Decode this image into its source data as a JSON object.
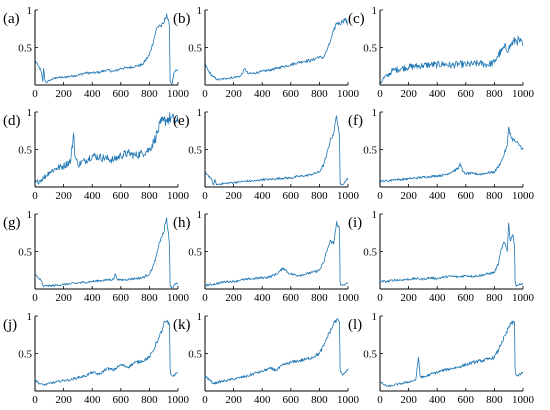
{
  "figure": {
    "line_color": "#1f77b4",
    "axis_color": "#000000"
  },
  "chart_data": [
    {
      "type": "line",
      "label": "(a)",
      "x_ticks": [
        0,
        200,
        400,
        600,
        800,
        1000
      ],
      "y_ticks": [
        0.5,
        1
      ],
      "xlim": [
        0,
        1000
      ],
      "ylim": [
        0,
        1
      ],
      "grid": false,
      "series": [
        {
          "x": [
            0,
            20,
            40,
            55,
            60,
            70,
            80,
            100,
            150,
            200,
            250,
            300,
            350,
            400,
            450,
            500,
            550,
            600,
            650,
            700,
            750,
            800,
            830,
            850,
            870,
            880,
            900,
            920,
            940,
            945,
            950,
            960,
            970,
            980,
            1000
          ],
          "y": [
            0.33,
            0.26,
            0.2,
            0.05,
            0.22,
            0.06,
            0.03,
            0.06,
            0.1,
            0.1,
            0.12,
            0.13,
            0.16,
            0.16,
            0.17,
            0.2,
            0.18,
            0.22,
            0.23,
            0.25,
            0.27,
            0.4,
            0.6,
            0.75,
            0.8,
            0.78,
            0.82,
            0.95,
            0.78,
            0.05,
            0.03,
            0.02,
            0.15,
            0.18,
            0.2
          ]
        }
      ]
    },
    {
      "type": "line",
      "label": "(b)",
      "x_ticks": [
        0,
        200,
        400,
        600,
        800,
        1000
      ],
      "y_ticks": [
        0.5,
        1
      ],
      "xlim": [
        0,
        1000
      ],
      "ylim": [
        0,
        1
      ],
      "grid": false,
      "series": [
        {
          "x": [
            0,
            20,
            50,
            80,
            100,
            150,
            200,
            250,
            280,
            300,
            350,
            400,
            450,
            500,
            550,
            600,
            650,
            700,
            750,
            800,
            820,
            850,
            880,
            900,
            920,
            940,
            960,
            980,
            1000
          ],
          "y": [
            0.28,
            0.2,
            0.12,
            0.08,
            0.07,
            0.09,
            0.1,
            0.12,
            0.22,
            0.15,
            0.16,
            0.18,
            0.2,
            0.22,
            0.25,
            0.27,
            0.3,
            0.32,
            0.33,
            0.38,
            0.35,
            0.45,
            0.6,
            0.72,
            0.83,
            0.82,
            0.85,
            0.88,
            0.8
          ]
        }
      ]
    },
    {
      "type": "line",
      "label": "(c)",
      "x_ticks": [
        0,
        200,
        400,
        600,
        800,
        1000
      ],
      "y_ticks": [
        0.5,
        1
      ],
      "xlim": [
        0,
        1000
      ],
      "ylim": [
        0,
        1
      ],
      "grid": false,
      "series": [
        {
          "x": [
            0,
            20,
            50,
            80,
            100,
            150,
            200,
            250,
            300,
            350,
            400,
            450,
            500,
            550,
            600,
            650,
            700,
            750,
            800,
            820,
            850,
            870,
            900,
            920,
            950,
            980,
            1000
          ],
          "y": [
            0.02,
            0.08,
            0.12,
            0.18,
            0.2,
            0.22,
            0.24,
            0.25,
            0.26,
            0.27,
            0.27,
            0.28,
            0.26,
            0.28,
            0.27,
            0.28,
            0.29,
            0.27,
            0.3,
            0.38,
            0.45,
            0.5,
            0.48,
            0.55,
            0.6,
            0.58,
            0.52
          ]
        }
      ]
    },
    {
      "type": "line",
      "label": "(d)",
      "x_ticks": [
        0,
        200,
        400,
        600,
        800,
        1000
      ],
      "y_ticks": [
        0.5,
        1
      ],
      "xlim": [
        0,
        1000
      ],
      "ylim": [
        0,
        1
      ],
      "grid": false,
      "series": [
        {
          "x": [
            0,
            30,
            60,
            100,
            150,
            200,
            250,
            270,
            280,
            300,
            350,
            400,
            450,
            500,
            550,
            600,
            650,
            700,
            750,
            800,
            830,
            860,
            880,
            900,
            920,
            950,
            980,
            1000
          ],
          "y": [
            0.05,
            0.08,
            0.12,
            0.2,
            0.25,
            0.28,
            0.35,
            0.72,
            0.4,
            0.3,
            0.35,
            0.42,
            0.4,
            0.38,
            0.36,
            0.42,
            0.45,
            0.42,
            0.45,
            0.5,
            0.6,
            0.75,
            0.85,
            0.88,
            0.9,
            0.92,
            0.88,
            0.86
          ]
        }
      ]
    },
    {
      "type": "line",
      "label": "(e)",
      "x_ticks": [
        0,
        200,
        400,
        600,
        800,
        1000
      ],
      "y_ticks": [
        0.5,
        1
      ],
      "xlim": [
        0,
        1000
      ],
      "ylim": [
        0,
        1
      ],
      "grid": false,
      "series": [
        {
          "x": [
            0,
            20,
            40,
            60,
            70,
            80,
            100,
            150,
            200,
            250,
            300,
            350,
            400,
            450,
            500,
            550,
            600,
            650,
            700,
            750,
            800,
            830,
            850,
            880,
            900,
            920,
            940,
            945,
            950,
            960,
            980,
            1000
          ],
          "y": [
            0.2,
            0.16,
            0.12,
            0.03,
            0.1,
            0.03,
            0.04,
            0.05,
            0.06,
            0.07,
            0.08,
            0.08,
            0.1,
            0.1,
            0.11,
            0.12,
            0.12,
            0.14,
            0.15,
            0.17,
            0.2,
            0.3,
            0.42,
            0.65,
            0.72,
            0.95,
            0.7,
            0.05,
            0.03,
            0.03,
            0.08,
            0.12
          ]
        }
      ]
    },
    {
      "type": "line",
      "label": "(f)",
      "x_ticks": [
        0,
        200,
        400,
        600,
        800,
        1000
      ],
      "y_ticks": [
        0.5,
        1
      ],
      "xlim": [
        0,
        1000
      ],
      "ylim": [
        0,
        1
      ],
      "grid": false,
      "series": [
        {
          "x": [
            0,
            50,
            100,
            150,
            200,
            250,
            300,
            350,
            400,
            450,
            500,
            550,
            560,
            580,
            600,
            650,
            700,
            750,
            800,
            830,
            850,
            870,
            890,
            900,
            920,
            950,
            980,
            1000
          ],
          "y": [
            0.08,
            0.08,
            0.1,
            0.1,
            0.11,
            0.12,
            0.13,
            0.14,
            0.15,
            0.16,
            0.2,
            0.25,
            0.32,
            0.2,
            0.18,
            0.18,
            0.17,
            0.19,
            0.2,
            0.28,
            0.35,
            0.45,
            0.55,
            0.8,
            0.65,
            0.6,
            0.55,
            0.5
          ]
        }
      ]
    },
    {
      "type": "line",
      "label": "(g)",
      "x_ticks": [
        0,
        200,
        400,
        600,
        800,
        1000
      ],
      "y_ticks": [
        0.5,
        1
      ],
      "xlim": [
        0,
        1000
      ],
      "ylim": [
        0,
        1
      ],
      "grid": false,
      "series": [
        {
          "x": [
            0,
            20,
            40,
            60,
            80,
            100,
            150,
            200,
            250,
            300,
            350,
            400,
            450,
            500,
            550,
            560,
            580,
            600,
            650,
            700,
            750,
            800,
            830,
            850,
            880,
            900,
            920,
            940,
            945,
            950,
            960,
            980,
            1000
          ],
          "y": [
            0.2,
            0.15,
            0.12,
            0.03,
            0.05,
            0.04,
            0.05,
            0.06,
            0.07,
            0.08,
            0.09,
            0.1,
            0.11,
            0.12,
            0.13,
            0.2,
            0.12,
            0.12,
            0.13,
            0.14,
            0.15,
            0.2,
            0.32,
            0.45,
            0.68,
            0.75,
            0.95,
            0.6,
            0.05,
            0.03,
            0.02,
            0.06,
            0.08
          ]
        }
      ]
    },
    {
      "type": "line",
      "label": "(h)",
      "x_ticks": [
        0,
        200,
        400,
        600,
        800,
        1000
      ],
      "y_ticks": [
        0.5,
        1
      ],
      "xlim": [
        0,
        1000
      ],
      "ylim": [
        0,
        1
      ],
      "grid": false,
      "series": [
        {
          "x": [
            0,
            50,
            100,
            150,
            200,
            250,
            300,
            350,
            400,
            450,
            500,
            550,
            580,
            600,
            650,
            700,
            750,
            800,
            830,
            850,
            880,
            900,
            920,
            940,
            945,
            950,
            960,
            980,
            1000
          ],
          "y": [
            0.05,
            0.06,
            0.08,
            0.1,
            0.1,
            0.12,
            0.13,
            0.14,
            0.15,
            0.16,
            0.2,
            0.28,
            0.22,
            0.2,
            0.18,
            0.2,
            0.22,
            0.25,
            0.35,
            0.5,
            0.65,
            0.6,
            0.9,
            0.8,
            0.1,
            0.05,
            0.05,
            0.06,
            0.08
          ]
        }
      ]
    },
    {
      "type": "line",
      "label": "(i)",
      "x_ticks": [
        0,
        200,
        400,
        600,
        800,
        1000
      ],
      "y_ticks": [
        0.5,
        1
      ],
      "xlim": [
        0,
        1000
      ],
      "ylim": [
        0,
        1
      ],
      "grid": false,
      "series": [
        {
          "x": [
            0,
            50,
            100,
            150,
            200,
            250,
            300,
            350,
            400,
            450,
            500,
            550,
            600,
            650,
            700,
            750,
            800,
            830,
            850,
            870,
            890,
            900,
            910,
            930,
            940,
            945,
            950,
            960,
            980,
            1000
          ],
          "y": [
            0.1,
            0.1,
            0.12,
            0.12,
            0.13,
            0.14,
            0.13,
            0.15,
            0.14,
            0.16,
            0.17,
            0.16,
            0.18,
            0.17,
            0.18,
            0.2,
            0.22,
            0.35,
            0.55,
            0.62,
            0.5,
            0.88,
            0.65,
            0.72,
            0.6,
            0.1,
            0.05,
            0.05,
            0.06,
            0.08
          ]
        }
      ]
    },
    {
      "type": "line",
      "label": "(j)",
      "x_ticks": [
        0,
        200,
        400,
        600,
        800,
        1000
      ],
      "y_ticks": [
        0.5,
        1
      ],
      "xlim": [
        0,
        1000
      ],
      "ylim": [
        0,
        1
      ],
      "grid": false,
      "series": [
        {
          "x": [
            0,
            30,
            60,
            100,
            150,
            200,
            250,
            300,
            350,
            400,
            450,
            500,
            550,
            600,
            650,
            700,
            750,
            800,
            830,
            850,
            870,
            890,
            900,
            920,
            940,
            945,
            950,
            960,
            980,
            1000
          ],
          "y": [
            0.15,
            0.1,
            0.08,
            0.1,
            0.12,
            0.14,
            0.15,
            0.18,
            0.2,
            0.25,
            0.22,
            0.3,
            0.28,
            0.35,
            0.32,
            0.38,
            0.4,
            0.45,
            0.55,
            0.65,
            0.72,
            0.82,
            0.9,
            0.92,
            0.88,
            0.3,
            0.22,
            0.2,
            0.22,
            0.25
          ]
        }
      ]
    },
    {
      "type": "line",
      "label": "(k)",
      "x_ticks": [
        0,
        200,
        400,
        600,
        800,
        1000
      ],
      "y_ticks": [
        0.5,
        1
      ],
      "xlim": [
        0,
        1000
      ],
      "ylim": [
        0,
        1
      ],
      "grid": false,
      "series": [
        {
          "x": [
            0,
            30,
            60,
            100,
            150,
            200,
            250,
            300,
            350,
            400,
            450,
            500,
            550,
            600,
            650,
            700,
            750,
            800,
            830,
            850,
            870,
            890,
            900,
            920,
            940,
            945,
            950,
            960,
            980,
            1000
          ],
          "y": [
            0.2,
            0.15,
            0.1,
            0.12,
            0.14,
            0.16,
            0.18,
            0.2,
            0.24,
            0.26,
            0.3,
            0.28,
            0.35,
            0.38,
            0.4,
            0.42,
            0.45,
            0.5,
            0.6,
            0.7,
            0.78,
            0.85,
            0.9,
            0.95,
            0.92,
            0.3,
            0.25,
            0.22,
            0.25,
            0.3
          ]
        }
      ]
    },
    {
      "type": "line",
      "label": "(l)",
      "x_ticks": [
        0,
        200,
        400,
        600,
        800,
        1000
      ],
      "y_ticks": [
        0.5,
        1
      ],
      "xlim": [
        0,
        1000
      ],
      "ylim": [
        0,
        1
      ],
      "grid": false,
      "series": [
        {
          "x": [
            0,
            30,
            60,
            100,
            150,
            200,
            250,
            270,
            280,
            300,
            350,
            400,
            450,
            500,
            550,
            600,
            650,
            700,
            750,
            800,
            830,
            850,
            880,
            900,
            920,
            940,
            945,
            950,
            960,
            980,
            1000
          ],
          "y": [
            0.12,
            0.08,
            0.06,
            0.08,
            0.1,
            0.12,
            0.15,
            0.45,
            0.2,
            0.18,
            0.22,
            0.25,
            0.28,
            0.3,
            0.32,
            0.35,
            0.38,
            0.4,
            0.42,
            0.45,
            0.55,
            0.65,
            0.75,
            0.85,
            0.9,
            0.92,
            0.3,
            0.22,
            0.2,
            0.22,
            0.25
          ]
        }
      ]
    }
  ]
}
